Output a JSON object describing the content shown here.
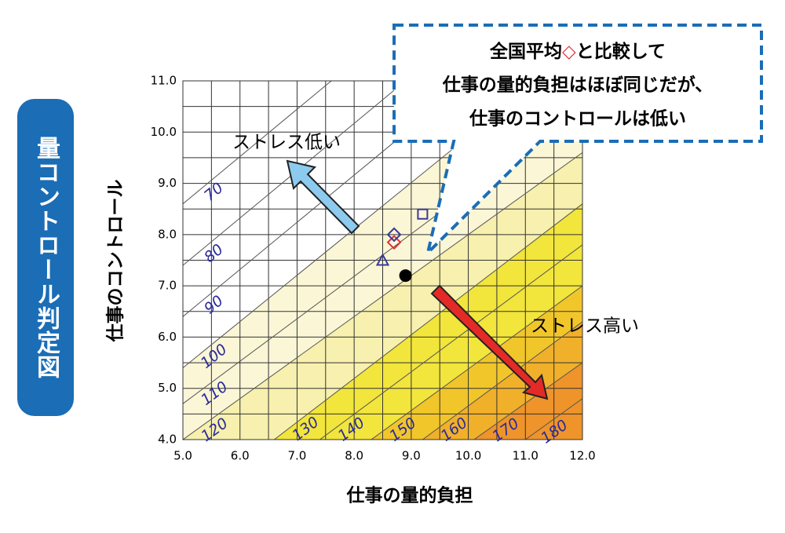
{
  "chart_data": {
    "type": "stress-chart",
    "side_label": "量コントロール判定図",
    "x_label": "仕事の量的負担",
    "y_label": "仕事のコントロール",
    "xlim": [
      5,
      12
    ],
    "ylim": [
      4,
      11
    ],
    "xticks": [
      {
        "value": 5,
        "label": "5.0"
      },
      {
        "value": 6,
        "label": "6.0"
      },
      {
        "value": 7,
        "label": "7.0"
      },
      {
        "value": 8,
        "label": "8.0"
      },
      {
        "value": 9,
        "label": "9.0"
      },
      {
        "value": 10,
        "label": "10.0"
      },
      {
        "value": 11,
        "label": "11.0"
      },
      {
        "value": 12,
        "label": "12.0"
      }
    ],
    "yticks": [
      {
        "value": 4,
        "label": "4.0"
      },
      {
        "value": 5,
        "label": "5.0"
      },
      {
        "value": 6,
        "label": "6.0"
      },
      {
        "value": 7,
        "label": "7.0"
      },
      {
        "value": 8,
        "label": "8.0"
      },
      {
        "value": 9,
        "label": "9.0"
      },
      {
        "value": 10,
        "label": "10.0"
      },
      {
        "value": 11,
        "label": "11.0"
      }
    ],
    "xgrid": [
      5,
      5.5,
      6,
      6.5,
      7,
      7.5,
      8,
      8.5,
      9,
      9.5,
      10,
      10.5,
      11,
      11.5,
      12
    ],
    "ygrid": [
      4,
      4.5,
      5,
      5.5,
      6,
      6.5,
      7,
      7.5,
      8,
      8.5,
      9,
      9.5,
      10,
      10.5,
      11
    ],
    "contours": [
      {
        "level": 70,
        "x": [
          5.0,
          7.6
        ],
        "y": [
          8.6,
          11.0
        ]
      },
      {
        "level": 80,
        "x": [
          5.0,
          8.9
        ],
        "y": [
          7.4,
          11.0
        ]
      },
      {
        "level": 90,
        "x": [
          5.0,
          10.0
        ],
        "y": [
          6.4,
          11.0
        ]
      },
      {
        "level": 100,
        "x": [
          5.0,
          11.2
        ],
        "y": [
          5.4,
          11.0
        ],
        "fill": "#fbf6d6"
      },
      {
        "level": 110,
        "x": [
          5.0,
          12.0
        ],
        "y": [
          4.7,
          10.5
        ]
      },
      {
        "level": 120,
        "x": [
          5.0,
          12.0
        ],
        "y": [
          4.0,
          9.6
        ],
        "fill": "#f7f0ae"
      },
      {
        "level": 130,
        "x": [
          6.6,
          12.0
        ],
        "y": [
          4.0,
          8.6
        ],
        "fill": "#f2e53c"
      },
      {
        "level": 140,
        "x": [
          7.4,
          12.0
        ],
        "y": [
          4.0,
          7.8
        ]
      },
      {
        "level": 150,
        "x": [
          8.3,
          12.0
        ],
        "y": [
          4.0,
          7.0
        ],
        "fill": "#f1c62a"
      },
      {
        "level": 160,
        "x": [
          9.2,
          12.0
        ],
        "y": [
          4.0,
          6.3
        ],
        "fill": "#f0b02a"
      },
      {
        "level": 170,
        "x": [
          10.1,
          12.0
        ],
        "y": [
          4.0,
          5.5
        ],
        "fill": "#ee942a"
      },
      {
        "level": 180,
        "x": [
          11.0,
          12.0
        ],
        "y": [
          4.0,
          4.8
        ]
      }
    ],
    "points": [
      {
        "x": 8.9,
        "y": 7.2,
        "marker": "circle",
        "color": "#000000"
      },
      {
        "x": 8.7,
        "y": 7.85,
        "marker": "diamond",
        "color": "#e0303a"
      },
      {
        "x": 8.7,
        "y": 8.0,
        "marker": "diamond",
        "color": "#3a3a9a"
      },
      {
        "x": 9.2,
        "y": 8.4,
        "marker": "square",
        "color": "#3a3a9a"
      },
      {
        "x": 8.5,
        "y": 7.5,
        "marker": "triangle",
        "color": "#3a3a9a"
      }
    ],
    "annotations": {
      "low": "ストレス低い",
      "high": "ストレス高い",
      "callout": {
        "line1": [
          "全国平均",
          "◇",
          "と比較して"
        ],
        "line2": "仕事の量的負担はほぼ同じだが、",
        "line3": "仕事のコントロールは低い"
      }
    }
  }
}
